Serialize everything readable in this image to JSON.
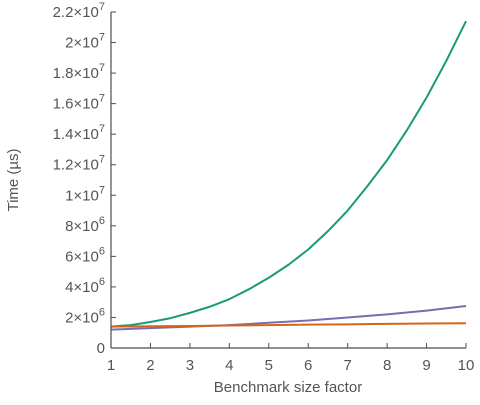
{
  "chart_data": {
    "type": "line",
    "xlabel": "Benchmark size factor",
    "ylabel": "Time (µs)",
    "xlim": [
      1,
      10
    ],
    "ylim": [
      0,
      22000000
    ],
    "x_ticks": [
      {
        "value": 1,
        "label": "1"
      },
      {
        "value": 2,
        "label": "2"
      },
      {
        "value": 3,
        "label": "3"
      },
      {
        "value": 4,
        "label": "4"
      },
      {
        "value": 5,
        "label": "5"
      },
      {
        "value": 6,
        "label": "6"
      },
      {
        "value": 7,
        "label": "7"
      },
      {
        "value": 8,
        "label": "8"
      },
      {
        "value": 9,
        "label": "9"
      },
      {
        "value": 10,
        "label": "10"
      }
    ],
    "y_ticks": [
      {
        "value": 0,
        "base": "0",
        "exp": ""
      },
      {
        "value": 2000000,
        "base": "2×10",
        "exp": "6"
      },
      {
        "value": 4000000,
        "base": "4×10",
        "exp": "6"
      },
      {
        "value": 6000000,
        "base": "6×10",
        "exp": "6"
      },
      {
        "value": 8000000,
        "base": "8×10",
        "exp": "6"
      },
      {
        "value": 10000000,
        "base": "1×10",
        "exp": "7"
      },
      {
        "value": 12000000,
        "base": "1.2×10",
        "exp": "7"
      },
      {
        "value": 14000000,
        "base": "1.4×10",
        "exp": "7"
      },
      {
        "value": 16000000,
        "base": "1.6×10",
        "exp": "7"
      },
      {
        "value": 18000000,
        "base": "1.8×10",
        "exp": "7"
      },
      {
        "value": 20000000,
        "base": "2×10",
        "exp": "7"
      },
      {
        "value": 22000000,
        "base": "2.2×10",
        "exp": "7"
      }
    ],
    "grid": false,
    "legend": "none",
    "series": [
      {
        "color": "#1a9a78",
        "x": [
          1,
          1.5,
          2,
          2.5,
          3,
          3.5,
          4,
          4.5,
          5,
          5.5,
          6,
          6.5,
          7,
          7.5,
          8,
          8.5,
          9,
          9.5,
          10
        ],
        "y": [
          1400000,
          1500000,
          1700000,
          1950000,
          2300000,
          2700000,
          3200000,
          3850000,
          4600000,
          5450000,
          6450000,
          7650000,
          9000000,
          10600000,
          12300000,
          14250000,
          16400000,
          18800000,
          21400000
        ]
      },
      {
        "color": "#7b6bb0",
        "x": [
          1,
          2,
          3,
          4,
          5,
          6,
          7,
          8,
          9,
          10
        ],
        "y": [
          1200000,
          1300000,
          1400000,
          1500000,
          1650000,
          1800000,
          2000000,
          2200000,
          2450000,
          2750000
        ]
      },
      {
        "color": "#d4661a",
        "x": [
          1,
          2,
          3,
          4,
          5,
          6,
          7,
          8,
          9,
          10
        ],
        "y": [
          1400000,
          1420000,
          1440000,
          1470000,
          1500000,
          1530000,
          1550000,
          1580000,
          1600000,
          1620000
        ]
      }
    ]
  }
}
